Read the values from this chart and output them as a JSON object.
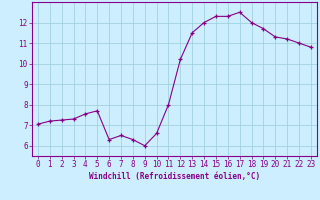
{
  "x": [
    0,
    1,
    2,
    3,
    4,
    5,
    6,
    7,
    8,
    9,
    10,
    11,
    12,
    13,
    14,
    15,
    16,
    17,
    18,
    19,
    20,
    21,
    22,
    23
  ],
  "y": [
    7.05,
    7.2,
    7.25,
    7.3,
    7.55,
    7.7,
    6.3,
    6.5,
    6.3,
    6.0,
    6.6,
    8.0,
    10.2,
    11.5,
    12.0,
    12.3,
    12.3,
    12.5,
    12.0,
    11.7,
    11.3,
    11.2,
    11.0,
    10.8
  ],
  "line_color": "#880088",
  "marker": "+",
  "marker_size": 3,
  "xlabel": "Windchill (Refroidissement éolien,°C)",
  "bg_color": "#cceeff",
  "grid_color": "#99ccdd",
  "ylim_min": 5.5,
  "ylim_max": 13.0,
  "xlim_min": -0.5,
  "xlim_max": 23.5,
  "yticks": [
    6,
    7,
    8,
    9,
    10,
    11,
    12
  ],
  "xticks": [
    0,
    1,
    2,
    3,
    4,
    5,
    6,
    7,
    8,
    9,
    10,
    11,
    12,
    13,
    14,
    15,
    16,
    17,
    18,
    19,
    20,
    21,
    22,
    23
  ],
  "tick_color": "#880088",
  "label_fontsize": 5.5,
  "tick_fontsize": 5.5,
  "spine_color": "#880088"
}
